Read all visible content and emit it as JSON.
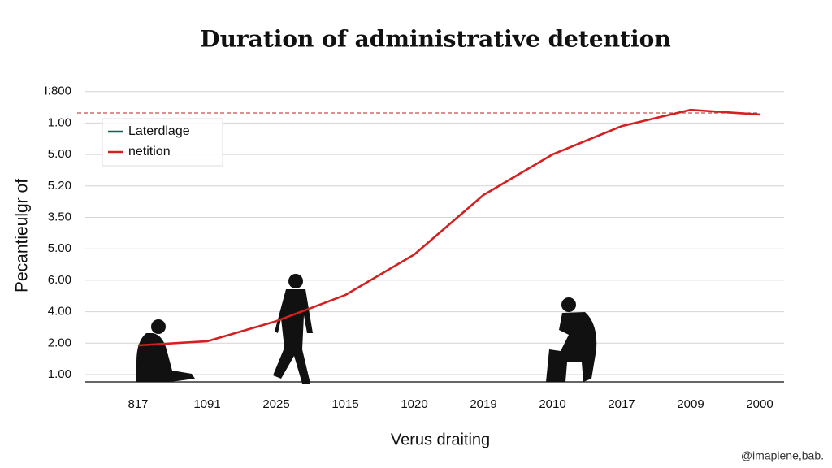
{
  "chart_data": {
    "type": "line",
    "title": "Duration of administrative detention",
    "y_label": "Pecantieulgr of",
    "x_label": "Verus draiting",
    "watermark": "@imapiene,bab.",
    "categories": [
      "817",
      "1091",
      "2025",
      "1015",
      "1020",
      "2019",
      "2010",
      "2017",
      "2009",
      "2000"
    ],
    "y_categories": [
      "1.00",
      "2.00",
      "4.00",
      "6.00",
      "5.00",
      "3.50",
      "5.20",
      "5.00",
      "1.00",
      "I:800"
    ],
    "series": [
      {
        "name": "Laterdlage",
        "color": "#1d5a52",
        "values": [
          null,
          null,
          null,
          null,
          null,
          null,
          null,
          null,
          null,
          null
        ]
      },
      {
        "name": "netition",
        "color": "#d42020",
        "values": [
          0.93,
          1.06,
          1.7,
          2.53,
          3.82,
          5.71,
          7.0,
          7.9,
          8.42,
          8.27
        ]
      }
    ],
    "reference_line": {
      "value": 8.32,
      "color": "#c0504d"
    },
    "grid": true,
    "legend": "upper left"
  }
}
